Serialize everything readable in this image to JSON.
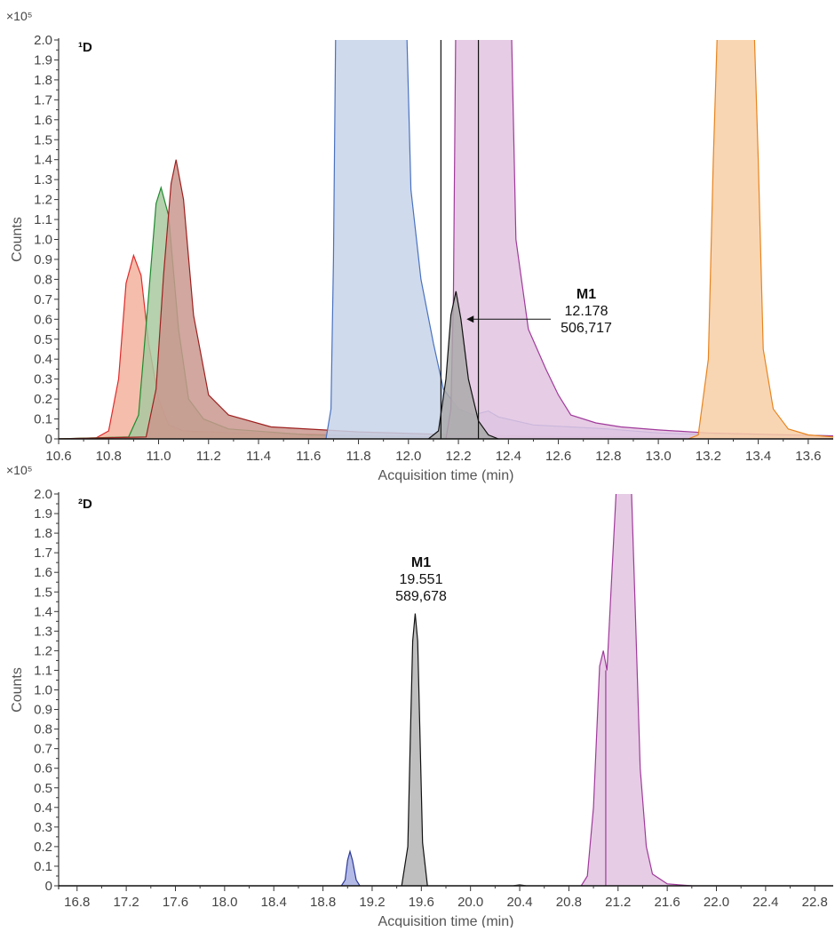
{
  "chart_data": [
    {
      "type": "area",
      "panel_label": "¹D",
      "y_multiplier": "×10⁵",
      "xlabel": "Acquisition time (min)",
      "ylabel": "Counts",
      "xlim": [
        10.6,
        13.7
      ],
      "ylim": [
        0,
        2.0
      ],
      "x_ticks": [
        "10.6",
        "10.8",
        "11.0",
        "11.2",
        "11.4",
        "11.6",
        "11.8",
        "12.0",
        "12.2",
        "12.4",
        "12.6",
        "12.8",
        "13.0",
        "13.2",
        "13.4",
        "13.6"
      ],
      "y_ticks": [
        "0",
        "0.1",
        "0.2",
        "0.3",
        "0.4",
        "0.5",
        "0.6",
        "0.7",
        "0.8",
        "0.9",
        "1.0",
        "1.1",
        "1.2",
        "1.3",
        "1.4",
        "1.5",
        "1.6",
        "1.7",
        "1.8",
        "1.9",
        "2.0"
      ],
      "vertical_lines": [
        12.13,
        12.28
      ],
      "annotation": {
        "name": "M1",
        "rt": "12.178",
        "area": "506,717",
        "points_to": [
          12.19,
          0.6
        ]
      },
      "series": [
        {
          "stroke": "#e02a2a",
          "fill": "#f3b19c",
          "points": [
            [
              10.6,
              0
            ],
            [
              10.75,
              0.005
            ],
            [
              10.8,
              0.04
            ],
            [
              10.84,
              0.3
            ],
            [
              10.87,
              0.78
            ],
            [
              10.9,
              0.92
            ],
            [
              10.93,
              0.82
            ],
            [
              10.96,
              0.48
            ],
            [
              11.0,
              0.2
            ],
            [
              11.04,
              0.07
            ],
            [
              11.1,
              0.04
            ],
            [
              11.3,
              0.03
            ],
            [
              11.7,
              0.02
            ],
            [
              12.2,
              0.01
            ],
            [
              13.7,
              0.005
            ]
          ]
        },
        {
          "stroke": "#1e8a2e",
          "fill": "#a8c9a0",
          "points": [
            [
              10.6,
              0
            ],
            [
              10.88,
              0.01
            ],
            [
              10.92,
              0.12
            ],
            [
              10.96,
              0.72
            ],
            [
              10.99,
              1.18
            ],
            [
              11.01,
              1.26
            ],
            [
              11.04,
              1.12
            ],
            [
              11.08,
              0.55
            ],
            [
              11.12,
              0.2
            ],
            [
              11.18,
              0.1
            ],
            [
              11.28,
              0.05
            ],
            [
              11.6,
              0.02
            ],
            [
              12.2,
              0.005
            ],
            [
              13.7,
              0.003
            ]
          ]
        },
        {
          "stroke": "#9e2020",
          "fill": "#c9988e",
          "points": [
            [
              10.6,
              0
            ],
            [
              10.95,
              0.01
            ],
            [
              10.99,
              0.25
            ],
            [
              11.02,
              0.82
            ],
            [
              11.05,
              1.28
            ],
            [
              11.07,
              1.4
            ],
            [
              11.1,
              1.2
            ],
            [
              11.14,
              0.62
            ],
            [
              11.2,
              0.22
            ],
            [
              11.28,
              0.12
            ],
            [
              11.45,
              0.06
            ],
            [
              11.8,
              0.035
            ],
            [
              12.2,
              0.02
            ],
            [
              12.6,
              0.012
            ],
            [
              13.7,
              0.005
            ]
          ]
        },
        {
          "stroke": "#4a72c0",
          "fill": "#c7d4ea",
          "points": [
            [
              11.67,
              0
            ],
            [
              11.69,
              0.15
            ],
            [
              11.7,
              0.9
            ],
            [
              11.71,
              2.2
            ],
            [
              11.99,
              2.2
            ],
            [
              12.01,
              1.25
            ],
            [
              12.05,
              0.8
            ],
            [
              12.1,
              0.48
            ],
            [
              12.14,
              0.25
            ],
            [
              12.2,
              0.15
            ],
            [
              12.26,
              0.12
            ],
            [
              12.32,
              0.14
            ],
            [
              12.36,
              0.11
            ],
            [
              12.5,
              0.07
            ],
            [
              12.8,
              0.05
            ],
            [
              13.0,
              0.03
            ],
            [
              13.1,
              0.025
            ],
            [
              13.4,
              0.02
            ],
            [
              13.7,
              0.015
            ]
          ]
        },
        {
          "stroke": "#a03a9b",
          "fill": "#e2c3e1",
          "points": [
            [
              12.15,
              0
            ],
            [
              12.17,
              0.15
            ],
            [
              12.18,
              0.7
            ],
            [
              12.19,
              2.2
            ],
            [
              12.41,
              2.2
            ],
            [
              12.43,
              1.0
            ],
            [
              12.48,
              0.55
            ],
            [
              12.55,
              0.35
            ],
            [
              12.6,
              0.22
            ],
            [
              12.65,
              0.12
            ],
            [
              12.75,
              0.08
            ],
            [
              12.85,
              0.06
            ],
            [
              13.0,
              0.045
            ],
            [
              13.2,
              0.03
            ],
            [
              13.7,
              0.015
            ]
          ]
        },
        {
          "stroke": "#e8841f",
          "fill": "#f8cfa6",
          "points": [
            [
              13.12,
              0
            ],
            [
              13.16,
              0.02
            ],
            [
              13.2,
              0.4
            ],
            [
              13.22,
              1.4
            ],
            [
              13.24,
              2.2
            ],
            [
              13.38,
              2.2
            ],
            [
              13.4,
              1.4
            ],
            [
              13.42,
              0.45
            ],
            [
              13.46,
              0.15
            ],
            [
              13.52,
              0.05
            ],
            [
              13.6,
              0.02
            ],
            [
              13.7,
              0.01
            ]
          ]
        },
        {
          "stroke": "#111111",
          "fill": "#a9a9a9",
          "points": [
            [
              12.08,
              0
            ],
            [
              12.12,
              0.04
            ],
            [
              12.15,
              0.3
            ],
            [
              12.17,
              0.62
            ],
            [
              12.19,
              0.74
            ],
            [
              12.21,
              0.6
            ],
            [
              12.24,
              0.3
            ],
            [
              12.28,
              0.09
            ],
            [
              12.32,
              0.02
            ],
            [
              12.36,
              0
            ]
          ]
        }
      ]
    },
    {
      "type": "area",
      "panel_label": "²D",
      "y_multiplier": "×10⁵",
      "xlabel": "Acquisition time (min)",
      "ylabel": "Counts",
      "xlim": [
        16.65,
        22.95
      ],
      "ylim": [
        0,
        2.0
      ],
      "x_ticks": [
        "16.8",
        "17.2",
        "17.6",
        "18.0",
        "18.4",
        "18.8",
        "19.2",
        "19.6",
        "20.0",
        "20.4",
        "20.8",
        "21.2",
        "21.6",
        "22.0",
        "22.4",
        "22.8"
      ],
      "y_ticks": [
        "0",
        "0.1",
        "0.2",
        "0.3",
        "0.4",
        "0.5",
        "0.6",
        "0.7",
        "0.8",
        "0.9",
        "1.0",
        "1.1",
        "1.2",
        "1.3",
        "1.4",
        "1.5",
        "1.6",
        "1.7",
        "1.8",
        "1.9",
        "2.0"
      ],
      "vertical_lines": [
        21.1
      ],
      "annotation": {
        "name": "M1",
        "rt": "19.551",
        "area": "589,678"
      },
      "series": [
        {
          "stroke": "#2d3a9a",
          "fill": "#a6aee0",
          "points": [
            [
              18.95,
              0
            ],
            [
              18.98,
              0.03
            ],
            [
              19.0,
              0.13
            ],
            [
              19.02,
              0.175
            ],
            [
              19.04,
              0.13
            ],
            [
              19.07,
              0.03
            ],
            [
              19.1,
              0
            ]
          ]
        },
        {
          "stroke": "#111111",
          "fill": "#b4b4b4",
          "points": [
            [
              19.44,
              0
            ],
            [
              19.49,
              0.2
            ],
            [
              19.51,
              0.75
            ],
            [
              19.53,
              1.25
            ],
            [
              19.55,
              1.39
            ],
            [
              19.57,
              1.25
            ],
            [
              19.59,
              0.75
            ],
            [
              19.61,
              0.22
            ],
            [
              19.65,
              0
            ]
          ]
        },
        {
          "stroke": "#a03a9b",
          "fill": "#e2c3e1",
          "points": [
            [
              20.9,
              0
            ],
            [
              20.95,
              0.05
            ],
            [
              21.0,
              0.4
            ],
            [
              21.05,
              1.12
            ],
            [
              21.08,
              1.2
            ],
            [
              21.11,
              1.1
            ],
            [
              21.15,
              1.6
            ],
            [
              21.2,
              2.2
            ],
            [
              21.3,
              2.2
            ],
            [
              21.34,
              1.4
            ],
            [
              21.38,
              0.6
            ],
            [
              21.43,
              0.2
            ],
            [
              21.48,
              0.06
            ],
            [
              21.6,
              0.01
            ],
            [
              21.8,
              0
            ]
          ]
        },
        {
          "stroke": "#555555",
          "fill": "#cccccc",
          "points": [
            [
              20.35,
              0
            ],
            [
              20.4,
              0.006
            ],
            [
              20.45,
              0
            ]
          ]
        }
      ]
    }
  ]
}
